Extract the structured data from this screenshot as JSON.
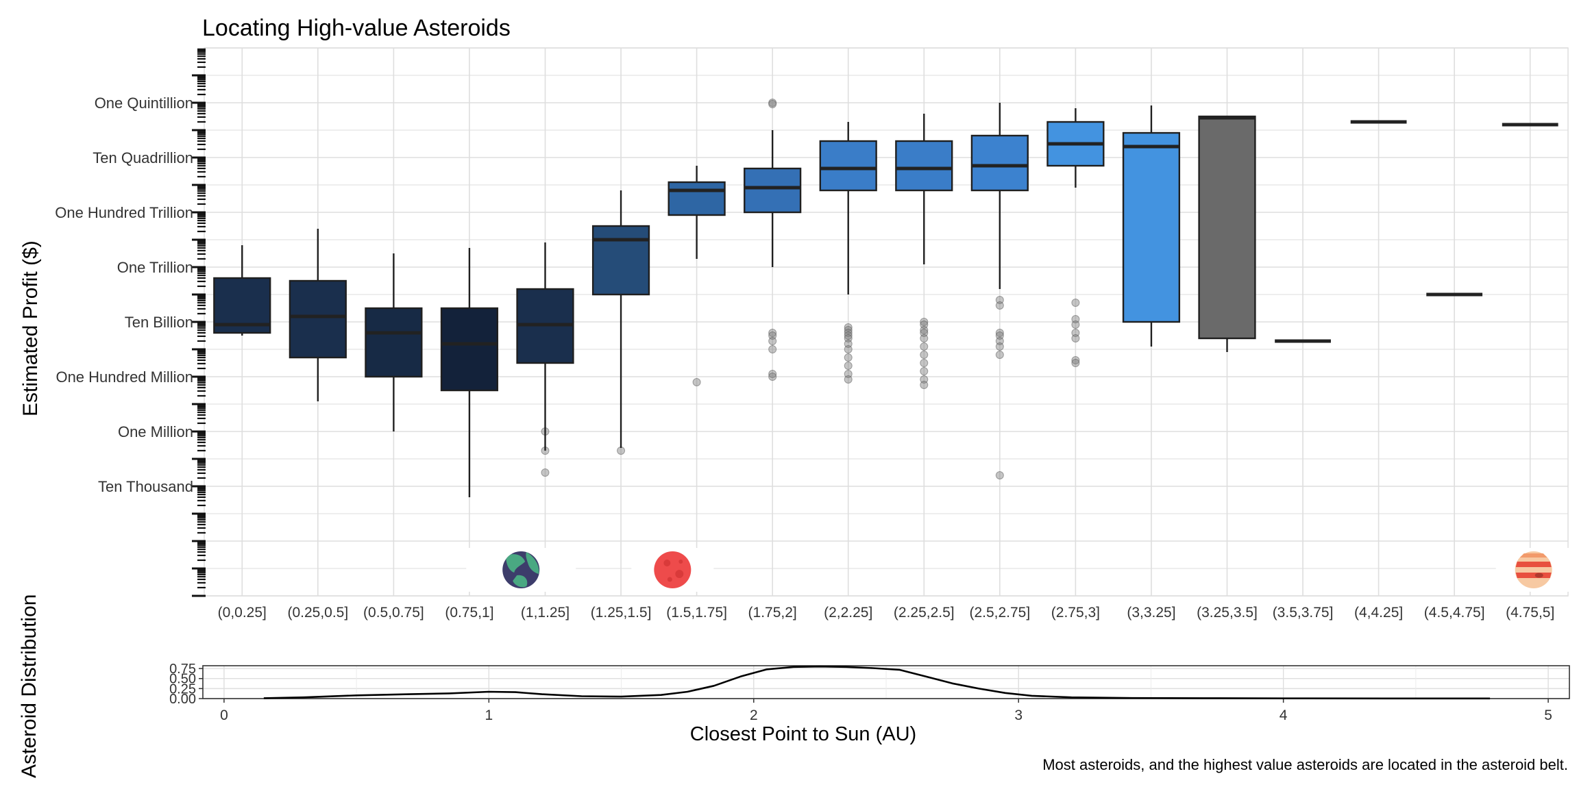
{
  "title": "Locating High-value Asteroids",
  "caption": "Most asteroids, and the highest value asteroids are located in the asteroid belt.",
  "colors": {
    "grid": "#dedede",
    "box_border": "#1f1f1f",
    "outlier": "#7f7f7f",
    "grey_box": "#6a6a6a"
  },
  "planet_icons": [
    {
      "name": "earth-icon",
      "category_index": 4
    },
    {
      "name": "mars-icon",
      "category_index": 6
    },
    {
      "name": "jupiter-icon",
      "category_index": 19
    }
  ],
  "chart_data": [
    {
      "type": "box",
      "title": "Locating High-value Asteroids",
      "ylabel": "Estimated Profit ($)",
      "xlabel": "",
      "y_scale": "log10",
      "ylim": [
        1,
        1e+20
      ],
      "grid": true,
      "yticks": [
        {
          "value": 10000.0,
          "label": "Ten Thousand"
        },
        {
          "value": 1000000.0,
          "label": "One Million"
        },
        {
          "value": 100000000.0,
          "label": "One Hundred Million"
        },
        {
          "value": 10000000000.0,
          "label": "Ten Billion"
        },
        {
          "value": 1000000000000.0,
          "label": "One Trillion"
        },
        {
          "value": 100000000000000.0,
          "label": "One Hundred Trillion"
        },
        {
          "value": 1e+16,
          "label": "Ten Quadrillion"
        },
        {
          "value": 1e+18,
          "label": "One Quintillion"
        }
      ],
      "categories": [
        "(0,0.25]",
        "(0.25,0.5]",
        "(0.5,0.75]",
        "(0.75,1]",
        "(1,1.25]",
        "(1.25,1.5]",
        "(1.5,1.75]",
        "(1.75,2]",
        "(2,2.25]",
        "(2.25,2.5]",
        "(2.5,2.75]",
        "(2.75,3]",
        "(3,3.25]",
        "(3.25,3.5]",
        "(3.5,3.75]",
        "(4,4.25]",
        "(4.5,4.75]",
        "(4.75,5]"
      ],
      "boxes": [
        {
          "category": "(0,0.25]",
          "min": 9.5,
          "q1": 9.6,
          "median": 9.9,
          "q3": 11.6,
          "max": 12.8,
          "color": "#1a2f4d",
          "outliers": []
        },
        {
          "category": "(0.25,0.5]",
          "min": 7.1,
          "q1": 8.7,
          "median": 10.2,
          "q3": 11.5,
          "max": 13.4,
          "color": "#1a2f4d",
          "outliers": []
        },
        {
          "category": "(0.5,0.75]",
          "min": 6.0,
          "q1": 8.0,
          "median": 9.6,
          "q3": 10.5,
          "max": 12.5,
          "color": "#172a45",
          "outliers": []
        },
        {
          "category": "(0.75,1]",
          "min": 3.6,
          "q1": 7.5,
          "median": 9.2,
          "q3": 10.5,
          "max": 12.7,
          "color": "#13223a",
          "outliers": []
        },
        {
          "category": "(1,1.25]",
          "min": 5.3,
          "q1": 8.5,
          "median": 9.9,
          "q3": 11.2,
          "max": 12.9,
          "color": "#1a2f4d",
          "outliers": [
            6.0,
            5.3,
            4.5
          ]
        },
        {
          "category": "(1.25,1.5]",
          "min": 5.4,
          "q1": 11.0,
          "median": 13.0,
          "q3": 13.5,
          "max": 14.8,
          "color": "#254c78",
          "outliers": [
            5.3
          ]
        },
        {
          "category": "(1.5,1.75]",
          "min": 12.3,
          "q1": 13.9,
          "median": 14.8,
          "q3": 15.1,
          "max": 15.7,
          "color": "#2e66a4",
          "outliers": [
            7.8
          ]
        },
        {
          "category": "(1.75,2]",
          "min": 12.0,
          "q1": 14.0,
          "median": 14.9,
          "q3": 15.6,
          "max": 17.0,
          "color": "#3470b5",
          "outliers": [
            18.0,
            17.95,
            9.6,
            9.5,
            9.3,
            9.0,
            8.1,
            8.0
          ]
        },
        {
          "category": "(2,2.25]",
          "min": 11.0,
          "q1": 14.8,
          "median": 15.6,
          "q3": 16.6,
          "max": 17.3,
          "color": "#3a7dc8",
          "outliers": [
            9.8,
            9.7,
            9.6,
            9.5,
            9.4,
            9.2,
            9.0,
            8.7,
            8.4,
            8.1,
            7.9
          ]
        },
        {
          "category": "(2.25,2.5]",
          "min": 12.1,
          "q1": 14.8,
          "median": 15.6,
          "q3": 16.6,
          "max": 17.6,
          "color": "#3a7dc8",
          "outliers": [
            10.0,
            9.9,
            9.7,
            9.6,
            9.4,
            9.1,
            8.8,
            8.5,
            8.2,
            7.9,
            7.7
          ]
        },
        {
          "category": "(2.5,2.75]",
          "min": 11.2,
          "q1": 14.8,
          "median": 15.7,
          "q3": 16.8,
          "max": 18.0,
          "color": "#3c82cf",
          "outliers": [
            10.8,
            10.6,
            9.6,
            9.5,
            9.3,
            9.1,
            8.8,
            4.4
          ]
        },
        {
          "category": "(2.75,3]",
          "min": 14.9,
          "q1": 15.7,
          "median": 16.5,
          "q3": 17.3,
          "max": 17.8,
          "color": "#4393e0",
          "outliers": [
            10.7,
            10.1,
            9.9,
            9.6,
            9.4,
            8.6,
            8.5
          ]
        },
        {
          "category": "(3,3.25]",
          "min": 9.1,
          "q1": 10.0,
          "median": 16.4,
          "q3": 16.9,
          "max": 17.9,
          "color": "#4393e0",
          "outliers": []
        },
        {
          "category": "(3.25,3.5]",
          "min": 8.9,
          "q1": 9.4,
          "median": 17.45,
          "q3": 17.5,
          "max": 17.5,
          "color": "#6a6a6a",
          "outliers": []
        },
        {
          "category": "(3.5,3.75]",
          "min": 9.3,
          "q1": 9.3,
          "median": 9.3,
          "q3": 9.3,
          "max": 9.3,
          "color": "#6a6a6a",
          "outliers": []
        },
        {
          "category": "(4,4.25]",
          "min": 17.3,
          "q1": 17.3,
          "median": 17.3,
          "q3": 17.3,
          "max": 17.3,
          "color": "#6a6a6a",
          "outliers": []
        },
        {
          "category": "(4.5,4.75]",
          "min": 11.0,
          "q1": 11.0,
          "median": 11.0,
          "q3": 11.0,
          "max": 11.0,
          "color": "#6a6a6a",
          "outliers": []
        },
        {
          "category": "(4.75,5]",
          "min": 17.2,
          "q1": 17.2,
          "median": 17.2,
          "q3": 17.2,
          "max": 17.2,
          "color": "#6a6a6a",
          "outliers": []
        }
      ]
    },
    {
      "type": "area",
      "ylabel": "Asteroid Distribution",
      "xlabel": "Closest Point to Sun (AU)",
      "xlim": [
        -0.08,
        5.08
      ],
      "ylim": [
        0,
        0.82
      ],
      "grid": true,
      "xticks": [
        0,
        1,
        2,
        3,
        4,
        5
      ],
      "yticks": [
        {
          "value": 0.0,
          "label": "0.00"
        },
        {
          "value": 0.25,
          "label": "0.25"
        },
        {
          "value": 0.5,
          "label": "0.50"
        },
        {
          "value": 0.75,
          "label": "0.75"
        }
      ],
      "x": [
        0.15,
        0.3,
        0.5,
        0.7,
        0.85,
        1.0,
        1.1,
        1.2,
        1.35,
        1.5,
        1.65,
        1.75,
        1.85,
        1.95,
        2.05,
        2.15,
        2.25,
        2.35,
        2.45,
        2.55,
        2.65,
        2.75,
        2.85,
        2.95,
        3.05,
        3.2,
        3.4,
        3.7,
        4.0,
        4.4,
        4.78
      ],
      "y": [
        0.01,
        0.03,
        0.08,
        0.11,
        0.13,
        0.17,
        0.16,
        0.11,
        0.06,
        0.05,
        0.09,
        0.17,
        0.32,
        0.55,
        0.73,
        0.79,
        0.8,
        0.79,
        0.76,
        0.72,
        0.55,
        0.38,
        0.25,
        0.14,
        0.07,
        0.03,
        0.015,
        0.01,
        0.005,
        0.004,
        0.003
      ]
    }
  ]
}
